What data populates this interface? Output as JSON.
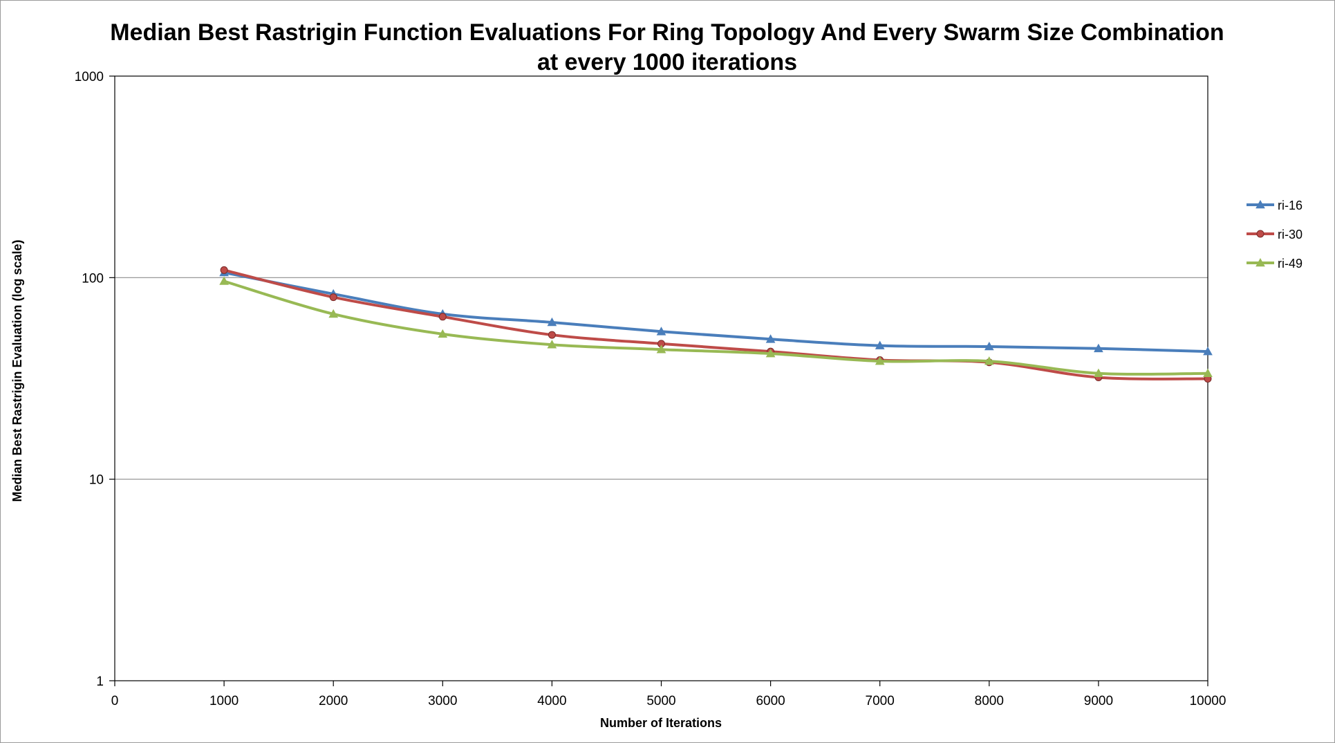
{
  "chart_data": {
    "type": "line",
    "title": "Median Best Rastrigin Function Evaluations For Ring Topology And Every Swarm Size Combination",
    "subtitle": "at every 1000 iterations",
    "xlabel": "Number of Iterations",
    "ylabel": "Median Best Rastrigin Evaluation (log scale)",
    "yscale": "log",
    "xlim": [
      0,
      10000
    ],
    "ylim": [
      1,
      1000
    ],
    "xticks": [
      "0",
      "1000",
      "2000",
      "3000",
      "4000",
      "5000",
      "6000",
      "7000",
      "8000",
      "9000",
      "10000"
    ],
    "yticks": [
      "1",
      "10",
      "100",
      "1000"
    ],
    "grid": "horizontal major",
    "legend_position": "right",
    "x": [
      1000,
      2000,
      3000,
      4000,
      5000,
      6000,
      7000,
      8000,
      9000,
      10000
    ],
    "series": [
      {
        "name": "ri-16",
        "color": "#4a7ebb",
        "marker": "triangle",
        "values": [
          106,
          83,
          66,
          60,
          54,
          49.5,
          46,
          45.5,
          44.5,
          43
        ]
      },
      {
        "name": "ri-30",
        "color": "#be4b48",
        "marker": "circle",
        "values": [
          109,
          80,
          64,
          52,
          47,
          43,
          39,
          38,
          32,
          31.5
        ]
      },
      {
        "name": "ri-49",
        "color": "#98b954",
        "marker": "triangle",
        "values": [
          96,
          66,
          52.5,
          46.5,
          44,
          42,
          38.5,
          38.5,
          33.5,
          33.5
        ]
      }
    ]
  }
}
